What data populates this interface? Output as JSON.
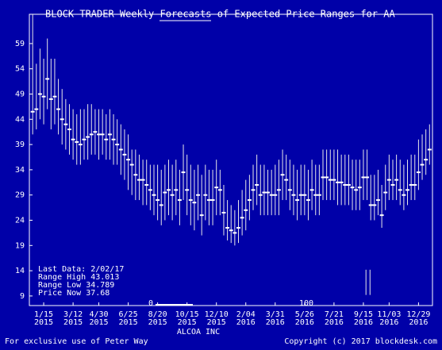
{
  "chart_data": {
    "type": "range",
    "title": "BLOCK TRADER Weekly Forecasts of Expected Price Ranges for AA",
    "x_label": "ALCOA INC",
    "footer_left": "For exclusive use of Peter Way",
    "footer_right": "Copyright (c) 2017 blockdesk.com",
    "info": [
      "Last Data: 2/02/17",
      "Range High 43.013",
      "Range Low 34.789",
      "Price Now 37.68"
    ],
    "scrollbar": {
      "min": 0,
      "max": 100
    },
    "xlim": [
      -3.9,
      105.8
    ],
    "ylim": [
      7.1,
      64.8
    ],
    "yticks": [
      9,
      14,
      19,
      24,
      29,
      34,
      39,
      44,
      49,
      54,
      59
    ],
    "xticks": [
      {
        "value": 0,
        "label": "1/15"
      },
      {
        "value": 8,
        "label": "3/12"
      },
      {
        "value": 15,
        "label": "4/30"
      },
      {
        "value": 23,
        "label": "6/25"
      },
      {
        "value": 31,
        "label": "8/20"
      },
      {
        "value": 39,
        "label": "10/15"
      },
      {
        "value": 47,
        "label": "12/10"
      },
      {
        "value": 55,
        "label": "2/04"
      },
      {
        "value": 63,
        "label": "3/31"
      },
      {
        "value": 71,
        "label": "5/26"
      },
      {
        "value": 79,
        "label": "7/21"
      },
      {
        "value": 87,
        "label": "9/15"
      },
      {
        "value": 94,
        "label": "11/03"
      },
      {
        "value": 102,
        "label": "12/29"
      }
    ],
    "xtick_sublabels": [
      "2015",
      "2015",
      "2015",
      "2015",
      "2015",
      "2015",
      "2015",
      "2016",
      "2016",
      "2016",
      "2016",
      "2016",
      "2016",
      "2016"
    ],
    "color": "#e8e8e8",
    "price_color": "#ffffff",
    "x": [
      -3,
      -2,
      -1,
      0,
      1,
      2,
      3,
      4,
      5,
      6,
      7,
      8,
      9,
      10,
      11,
      12,
      13,
      14,
      15,
      16,
      17,
      18,
      19,
      20,
      21,
      22,
      23,
      24,
      25,
      26,
      27,
      28,
      29,
      30,
      31,
      32,
      33,
      34,
      35,
      36,
      37,
      38,
      39,
      40,
      41,
      42,
      43,
      44,
      45,
      46,
      47,
      48,
      49,
      50,
      51,
      52,
      53,
      54,
      55,
      56,
      57,
      58,
      59,
      60,
      61,
      62,
      63,
      64,
      65,
      66,
      67,
      68,
      69,
      70,
      71,
      72,
      73,
      74,
      75,
      76,
      77,
      78,
      79,
      80,
      81,
      82,
      83,
      84,
      85,
      86,
      87,
      88,
      89,
      90,
      91,
      92,
      93,
      94,
      95,
      96,
      97,
      98,
      99,
      100,
      101,
      102,
      103,
      104,
      105
    ],
    "high": [
      64.8,
      55,
      58,
      56,
      60,
      56,
      56,
      52,
      50,
      48,
      47,
      46,
      45,
      46,
      46,
      47,
      47,
      46,
      46,
      46,
      45,
      46,
      45,
      44,
      43,
      42,
      41,
      38,
      38,
      37,
      36,
      36,
      35,
      35,
      35,
      34,
      35,
      36,
      35,
      36,
      34,
      39,
      37,
      35,
      34,
      35,
      33,
      35,
      34,
      34,
      36,
      34,
      31,
      28,
      27,
      26,
      28,
      30,
      32,
      33,
      35,
      37,
      35,
      35,
      34,
      34,
      35,
      36,
      38,
      37,
      36,
      35,
      34,
      35,
      35,
      34,
      36,
      35,
      35,
      38,
      38,
      38,
      38,
      38,
      37,
      37,
      37,
      36,
      36,
      36,
      38,
      38,
      33,
      33,
      34,
      31,
      35,
      37,
      36,
      37,
      36,
      35,
      36,
      37,
      37,
      40,
      41,
      42,
      43
    ],
    "low": [
      41,
      42,
      44,
      43,
      46,
      42,
      43,
      41,
      39,
      38,
      37,
      36,
      35,
      35,
      36,
      36,
      37,
      37,
      36,
      37,
      36,
      36,
      35,
      35,
      33,
      32,
      30,
      29,
      28,
      28,
      27,
      27,
      26,
      25,
      24,
      23,
      24,
      25,
      24,
      25,
      23,
      28,
      25,
      23,
      22,
      24,
      21,
      24,
      23,
      23,
      25,
      25,
      21,
      20,
      19.5,
      19,
      19.5,
      21,
      22,
      24,
      26,
      27,
      25,
      25,
      25,
      25,
      25,
      25,
      28,
      28,
      26,
      25,
      24,
      25,
      25,
      24,
      26,
      25,
      25,
      28,
      28,
      28,
      28,
      27,
      27,
      27,
      27,
      26,
      26,
      26,
      28,
      28,
      24,
      24,
      25,
      22.5,
      26,
      28,
      28,
      28,
      27,
      26,
      27,
      28,
      28,
      30,
      32,
      33,
      35
    ],
    "price": [
      45.5,
      46,
      49,
      48.5,
      52,
      48,
      48.5,
      46,
      44,
      43,
      42,
      40,
      39.5,
      39,
      40,
      40.5,
      41,
      41.5,
      41,
      41,
      40,
      41,
      40,
      39,
      38,
      37,
      36,
      35,
      33,
      32,
      32,
      31,
      30,
      29,
      28,
      27,
      29.5,
      30,
      29,
      30,
      28,
      33.5,
      30,
      28,
      27.5,
      29,
      25,
      29,
      28,
      28,
      30.5,
      30,
      25.5,
      22.5,
      22,
      21.5,
      22.5,
      24.5,
      26,
      28,
      30,
      31,
      29,
      29.5,
      29.5,
      29,
      29,
      30,
      33,
      32,
      30,
      29,
      28,
      29,
      29,
      28,
      30,
      29,
      29,
      32.5,
      32.5,
      32,
      32,
      31.5,
      31.5,
      31,
      31,
      30.5,
      30,
      30.5,
      32.5,
      32.5,
      27,
      27,
      28,
      25,
      29.5,
      32,
      31,
      32,
      30,
      29,
      30,
      31,
      31,
      33.5,
      35,
      36,
      38
    ],
    "extra_ranges": {
      "x": [
        87.7,
        88.8
      ],
      "low": [
        9.2,
        9.2
      ],
      "high": [
        14.2,
        14.2
      ]
    }
  }
}
